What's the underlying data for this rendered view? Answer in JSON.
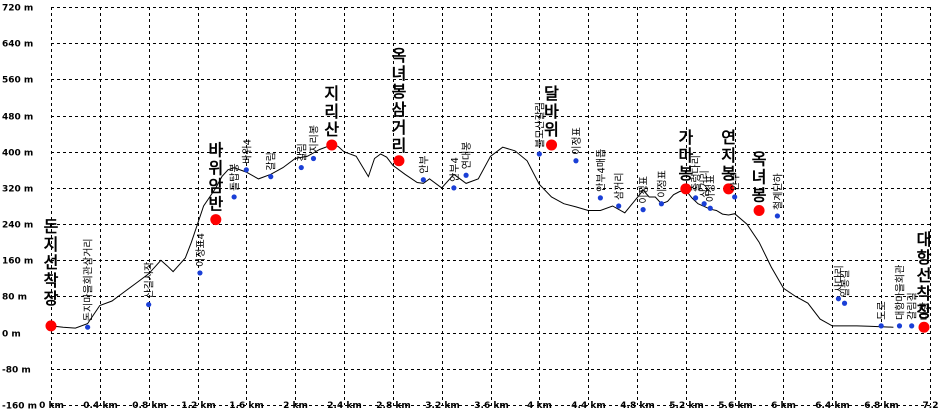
{
  "chart_data": {
    "type": "line",
    "xlim": [
      0,
      7.2
    ],
    "ylim": [
      -160,
      720
    ],
    "x_ticks": [
      "0 km",
      "0.4 km",
      "0.8 km",
      "1.2 km",
      "1.6 km",
      "2 km",
      "2.4 km",
      "2.8 km",
      "3.2 km",
      "3.6 km",
      "4 km",
      "4.4 km",
      "4.8 km",
      "5.2 km",
      "5.6 km",
      "6 km",
      "6.4 km",
      "6.8 km",
      "7.2"
    ],
    "y_ticks": [
      "720 m",
      "640 m",
      "560 m",
      "480 m",
      "400 m",
      "320 m",
      "240 m",
      "160 m",
      "80 m",
      "0 m",
      "-80 m",
      "-160 m"
    ],
    "grid": true,
    "series": [
      {
        "x": [
          0,
          0.1,
          0.2,
          0.3,
          0.4,
          0.5,
          0.6,
          0.7,
          0.8,
          0.9,
          0.95,
          1.0,
          1.05,
          1.1,
          1.15,
          1.2,
          1.25,
          1.3,
          1.35,
          1.4,
          1.45,
          1.5,
          1.6,
          1.7,
          1.8,
          1.9,
          2.0,
          2.1,
          2.2,
          2.3,
          2.35,
          2.4,
          2.5,
          2.6,
          2.65,
          2.7,
          2.75,
          2.8,
          2.9,
          3.0,
          3.05,
          3.1,
          3.2,
          3.3,
          3.4,
          3.5,
          3.6,
          3.7,
          3.8,
          3.9,
          4.0,
          4.1,
          4.2,
          4.3,
          4.4,
          4.5,
          4.6,
          4.7,
          4.8,
          4.85,
          4.9,
          4.95,
          5.0,
          5.05,
          5.1,
          5.15,
          5.2,
          5.25,
          5.3,
          5.4,
          5.45,
          5.5,
          5.55,
          5.6,
          5.7,
          5.8,
          5.9,
          6.0,
          6.1,
          6.2,
          6.3,
          6.4,
          6.5,
          6.6,
          6.7,
          6.8,
          6.9
        ],
        "y": [
          15,
          12,
          10,
          20,
          60,
          70,
          90,
          110,
          130,
          160,
          148,
          135,
          150,
          165,
          200,
          240,
          280,
          300,
          320,
          345,
          360,
          365,
          355,
          340,
          350,
          365,
          385,
          390,
          405,
          415,
          412,
          400,
          390,
          345,
          385,
          395,
          388,
          370,
          350,
          332,
          330,
          340,
          320,
          350,
          330,
          340,
          390,
          410,
          402,
          380,
          328,
          300,
          285,
          278,
          270,
          270,
          280,
          265,
          298,
          315,
          300,
          300,
          285,
          290,
          305,
          312,
          315,
          298,
          285,
          273,
          270,
          262,
          260,
          263,
          240,
          200,
          145,
          98,
          80,
          65,
          30,
          15,
          15,
          15,
          14,
          13,
          12
        ]
      }
    ],
    "points": [
      {
        "x": 0.0,
        "y": 15,
        "type": "peak",
        "label": "돈지선착장",
        "align": "left-vertical"
      },
      {
        "x": 0.3,
        "y": 12,
        "type": "poi",
        "label": "돈지마을회관삼거리"
      },
      {
        "x": 0.8,
        "y": 62,
        "type": "poi",
        "label": "산길시작"
      },
      {
        "x": 1.22,
        "y": 132,
        "type": "poi",
        "label": "이정표4"
      },
      {
        "x": 1.35,
        "y": 250,
        "type": "peak",
        "label": "바위암반"
      },
      {
        "x": 1.5,
        "y": 300,
        "type": "poi",
        "label": "돌탑봉"
      },
      {
        "x": 1.6,
        "y": 360,
        "type": "poi",
        "label": "바위4"
      },
      {
        "x": 1.8,
        "y": 345,
        "type": "poi",
        "label": "갈림"
      },
      {
        "x": 2.05,
        "y": 365,
        "type": "poi",
        "label": "갈림"
      },
      {
        "x": 2.15,
        "y": 385,
        "type": "poi",
        "label": "지리봉"
      },
      {
        "x": 2.3,
        "y": 415,
        "type": "peak",
        "label": "지리산"
      },
      {
        "x": 2.85,
        "y": 380,
        "type": "peak",
        "label": "옥녀봉삼거리"
      },
      {
        "x": 3.05,
        "y": 338,
        "type": "poi",
        "label": "안부"
      },
      {
        "x": 3.3,
        "y": 320,
        "type": "poi",
        "label": "안부4"
      },
      {
        "x": 3.4,
        "y": 348,
        "type": "poi",
        "label": "연대봉"
      },
      {
        "x": 4.0,
        "y": 395,
        "type": "poi",
        "label": "불모산갈림"
      },
      {
        "x": 4.1,
        "y": 415,
        "type": "peak",
        "label": "달바위"
      },
      {
        "x": 4.3,
        "y": 380,
        "type": "poi",
        "label": "이정표"
      },
      {
        "x": 4.5,
        "y": 298,
        "type": "poi",
        "label": "안부4매듭"
      },
      {
        "x": 4.65,
        "y": 280,
        "type": "poi",
        "label": "삼거리"
      },
      {
        "x": 4.85,
        "y": 272,
        "type": "poi",
        "label": "이정표"
      },
      {
        "x": 5.0,
        "y": 285,
        "type": "poi",
        "label": "이정표"
      },
      {
        "x": 5.2,
        "y": 318,
        "type": "peak",
        "label": "가마봉"
      },
      {
        "x": 5.28,
        "y": 298,
        "type": "poi",
        "label": "출렁다리"
      },
      {
        "x": 5.35,
        "y": 285,
        "type": "poi",
        "label": "삼거리"
      },
      {
        "x": 5.4,
        "y": 275,
        "type": "poi",
        "label": "이정표"
      },
      {
        "x": 5.55,
        "y": 318,
        "type": "peak",
        "label": "연지봉"
      },
      {
        "x": 5.6,
        "y": 300,
        "type": "poi",
        "label": "안부"
      },
      {
        "x": 5.8,
        "y": 270,
        "type": "peak",
        "label": "옥녀봉"
      },
      {
        "x": 5.95,
        "y": 258,
        "type": "poi",
        "label": "철계단하"
      },
      {
        "x": 6.45,
        "y": 75,
        "type": "poi",
        "label": "사다리"
      },
      {
        "x": 6.5,
        "y": 65,
        "type": "poi",
        "label": "일봉길"
      },
      {
        "x": 6.8,
        "y": 15,
        "type": "poi",
        "label": "도로"
      },
      {
        "x": 6.95,
        "y": 15,
        "type": "poi",
        "label": "대항마을회관"
      },
      {
        "x": 7.05,
        "y": 15,
        "type": "poi",
        "label": "갈림길"
      },
      {
        "x": 7.15,
        "y": 14,
        "type": "poi",
        "label": "대항"
      },
      {
        "x": 7.35,
        "y": 12,
        "type": "peak",
        "label": "대항선착장"
      }
    ]
  },
  "colors": {
    "line": "#000000",
    "poi_marker": "#1a3fd6",
    "peak_marker": "#ff0000",
    "grid": "#000000"
  }
}
